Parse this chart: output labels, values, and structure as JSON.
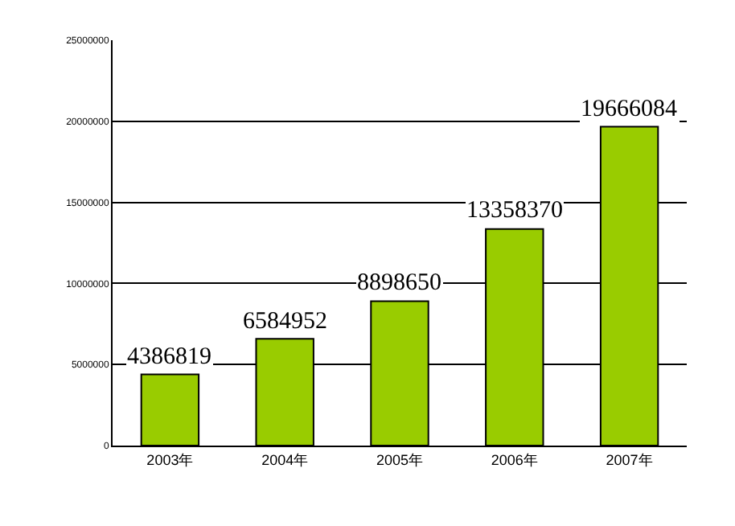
{
  "chart_data": {
    "type": "bar",
    "categories": [
      "2003年",
      "2004年",
      "2005年",
      "2006年",
      "2007年"
    ],
    "values": [
      4386819,
      6584952,
      8898650,
      13358370,
      19666084
    ],
    "color": "#99cc00",
    "ylim": [
      0,
      25000000
    ],
    "yticks": [
      0,
      5000000,
      10000000,
      15000000,
      20000000,
      25000000
    ],
    "grid": "y",
    "data_labels": true
  }
}
